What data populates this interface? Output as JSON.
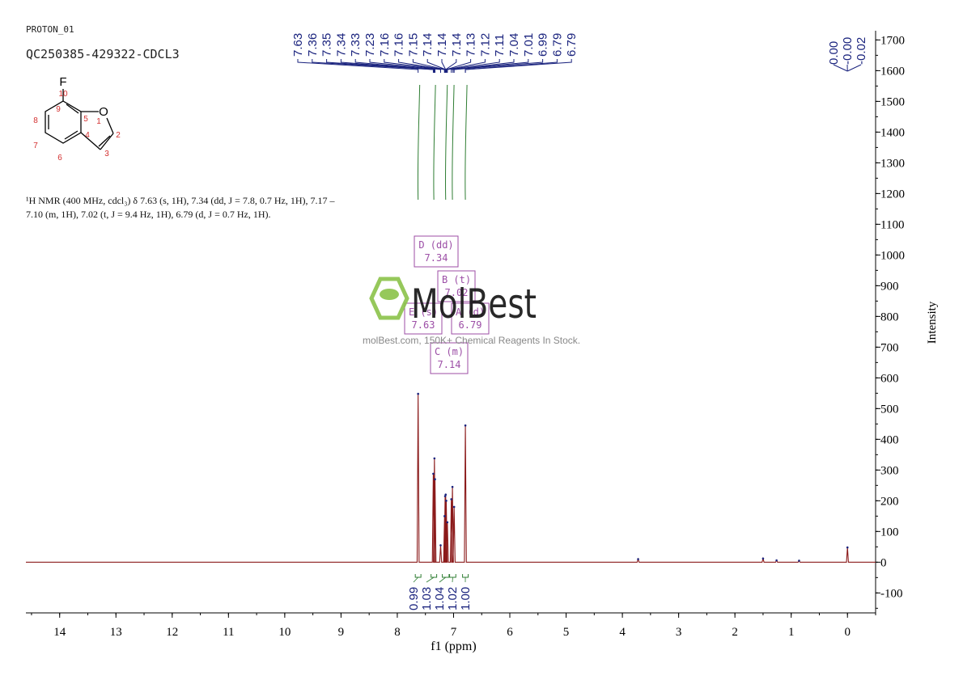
{
  "header": {
    "title": "PROTON_01",
    "sample_id": "QC250385-429322-CDCL3"
  },
  "molecule": {
    "heteroatoms": [
      "F",
      "O"
    ],
    "atom_numbers": [
      "1",
      "2",
      "3",
      "4",
      "5",
      "6",
      "7",
      "8",
      "9",
      "10"
    ]
  },
  "nmr_description": "¹H NMR (400 MHz, cdcl₃) δ 7.63 (s, 1H), 7.34 (dd, J = 7.8, 0.7 Hz, 1H), 7.17 – 7.10 (m, 1H), 7.02 (t, J = 9.4 Hz, 1H), 6.79 (d, J = 0.7 Hz, 1H).",
  "watermark": {
    "brand": "MolBest",
    "tagline": "molBest.com, 150K+ Chemical Reagents In Stock."
  },
  "colors": {
    "spectrum": "#8b1a1a",
    "peak_labels": "#1a237e",
    "integral": "#2e7d32",
    "multiplet_box": "#9c4ea6",
    "watermark_green": "#8bc34a"
  },
  "chart_data": {
    "type": "line",
    "xlabel": "f1 (ppm)",
    "ylabel": "Intensity",
    "xlim": [
      14.6,
      -0.5
    ],
    "ylim": [
      -165,
      1730
    ],
    "x_ticks": [
      14,
      13,
      12,
      11,
      10,
      9,
      8,
      7,
      6,
      5,
      4,
      3,
      2,
      1,
      0
    ],
    "y_ticks": [
      -100,
      0,
      100,
      200,
      300,
      400,
      500,
      600,
      700,
      800,
      900,
      1000,
      1100,
      1200,
      1300,
      1400,
      1500,
      1600,
      1700
    ],
    "peak_labels": [
      "7.63",
      "7.36",
      "7.35",
      "7.34",
      "7.33",
      "7.23",
      "7.16",
      "7.16",
      "7.15",
      "7.14",
      "7.14",
      "7.14",
      "7.13",
      "7.12",
      "7.11",
      "7.04",
      "7.01",
      "6.99",
      "6.79",
      "6.79"
    ],
    "reference_labels": [
      "0.00",
      "-0.00",
      "-0.02"
    ],
    "peaks": [
      {
        "x": 7.63,
        "y": 548
      },
      {
        "x": 7.36,
        "y": 288
      },
      {
        "x": 7.34,
        "y": 338
      },
      {
        "x": 7.33,
        "y": 270
      },
      {
        "x": 7.23,
        "y": 55
      },
      {
        "x": 7.16,
        "y": 150
      },
      {
        "x": 7.15,
        "y": 215
      },
      {
        "x": 7.14,
        "y": 220
      },
      {
        "x": 7.13,
        "y": 200
      },
      {
        "x": 7.11,
        "y": 130
      },
      {
        "x": 7.04,
        "y": 205
      },
      {
        "x": 7.02,
        "y": 245
      },
      {
        "x": 6.99,
        "y": 180
      },
      {
        "x": 6.79,
        "y": 445
      },
      {
        "x": 3.72,
        "y": 10
      },
      {
        "x": 1.5,
        "y": 12
      },
      {
        "x": 1.26,
        "y": 6
      },
      {
        "x": 0.86,
        "y": 5
      },
      {
        "x": 0.0,
        "y": 48
      }
    ],
    "integrals": [
      {
        "from": 7.68,
        "to": 7.58,
        "value": "0.99"
      },
      {
        "from": 7.4,
        "to": 7.3,
        "value": "1.03"
      },
      {
        "from": 7.2,
        "to": 7.08,
        "value": "1.04"
      },
      {
        "from": 7.07,
        "to": 6.96,
        "value": "1.02"
      },
      {
        "from": 6.84,
        "to": 6.74,
        "value": "1.00"
      }
    ],
    "multiplets": [
      {
        "id": "D",
        "type": "dd",
        "shift": "7.34"
      },
      {
        "id": "B",
        "type": "t",
        "shift": "7.02"
      },
      {
        "id": "E",
        "type": "s",
        "shift": "7.63"
      },
      {
        "id": "A",
        "type": "d",
        "shift": "6.79"
      },
      {
        "id": "C",
        "type": "m",
        "shift": "7.14"
      }
    ]
  }
}
